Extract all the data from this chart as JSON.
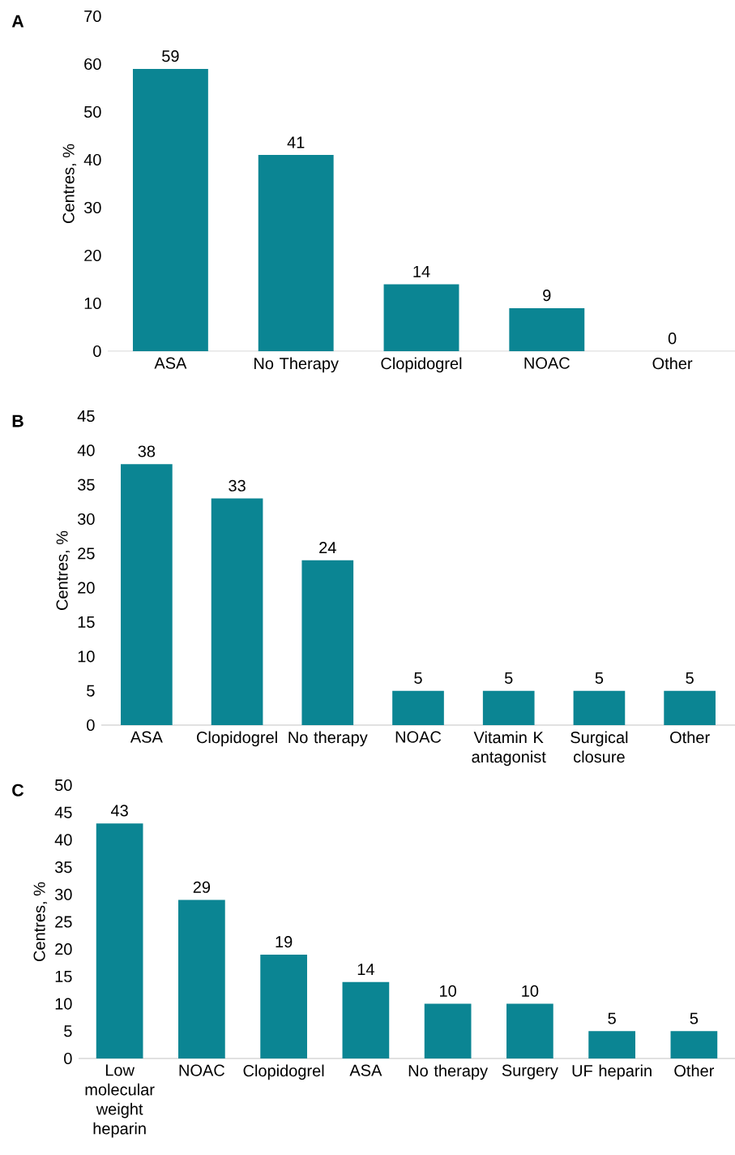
{
  "chart_data": [
    {
      "type": "bar",
      "title": "A",
      "ylabel": "Centres, %",
      "categories": [
        "ASA",
        "No Therapy",
        "Clopidogrel",
        "NOAC",
        "Other"
      ],
      "values": [
        59,
        41,
        14,
        9,
        0
      ],
      "color": "#0b8593",
      "ylim": [
        0,
        70
      ],
      "yticks": [
        0,
        10,
        20,
        30,
        40,
        50,
        60,
        70
      ],
      "data_labels": true,
      "grid": false
    },
    {
      "type": "bar",
      "title": "B",
      "ylabel": "Centres, %",
      "categories": [
        "ASA",
        "Clopidogrel",
        "No therapy",
        "NOAC",
        "Vitamin K antagonist",
        "Surgical closure",
        "Other"
      ],
      "values": [
        38,
        33,
        24,
        5,
        5,
        5,
        5
      ],
      "color": "#0b8593",
      "ylim": [
        0,
        45
      ],
      "yticks": [
        0,
        5,
        10,
        15,
        20,
        25,
        30,
        35,
        40,
        45
      ],
      "data_labels": true,
      "grid": false
    },
    {
      "type": "bar",
      "title": "C",
      "ylabel": "Centres, %",
      "categories": [
        "Low molecular weight heparin",
        "NOAC",
        "Clopidogrel",
        "ASA",
        "No therapy",
        "Surgery",
        "UF heparin",
        "Other"
      ],
      "values": [
        43,
        29,
        19,
        14,
        10,
        10,
        5,
        5
      ],
      "color": "#0b8593",
      "ylim": [
        0,
        50
      ],
      "yticks": [
        0,
        5,
        10,
        15,
        20,
        25,
        30,
        35,
        40,
        45,
        50
      ],
      "data_labels": true,
      "grid": false
    }
  ]
}
